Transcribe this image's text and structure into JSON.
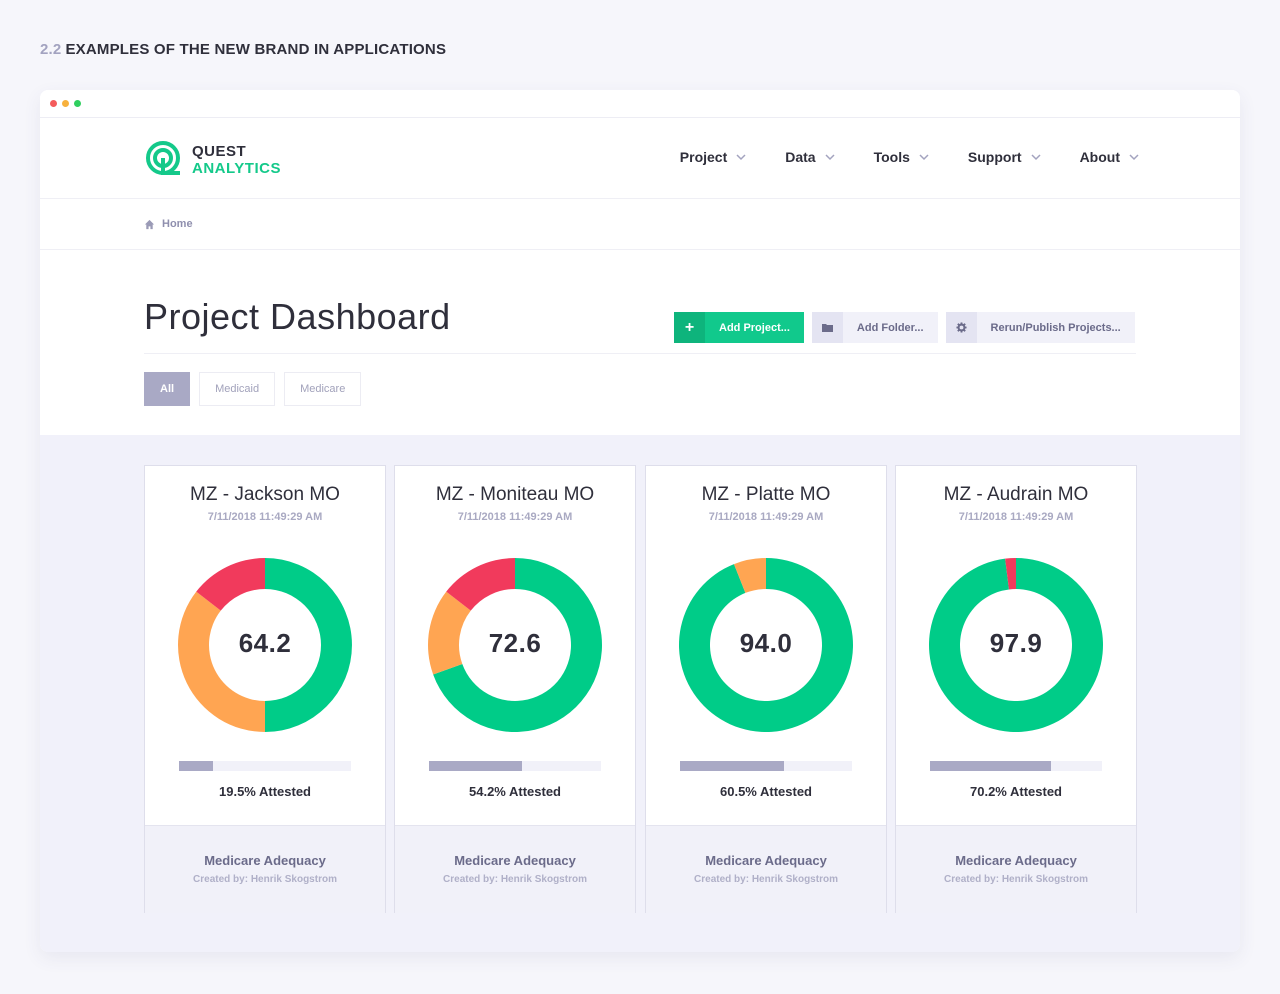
{
  "section": {
    "number": "2.2",
    "title": "EXAMPLES OF THE NEW BRAND IN APPLICATIONS"
  },
  "brand": {
    "line1": "QUEST",
    "line2": "ANALYTICS",
    "color": "#14c98a"
  },
  "nav": [
    {
      "label": "Project",
      "icon": "chevron-down-icon"
    },
    {
      "label": "Data",
      "icon": "chevron-down-icon"
    },
    {
      "label": "Tools",
      "icon": "chevron-down-icon"
    },
    {
      "label": "Support",
      "icon": "chevron-down-icon"
    },
    {
      "label": "About",
      "icon": "chevron-down-icon"
    }
  ],
  "breadcrumb": {
    "home": "Home",
    "icon": "home-icon"
  },
  "page": {
    "title": "Project Dashboard"
  },
  "actions": {
    "add_project": {
      "label": "Add Project...",
      "icon": "plus-icon"
    },
    "add_folder": {
      "label": "Add Folder...",
      "icon": "folder-icon"
    },
    "rerun": {
      "label": "Rerun/Publish Projects...",
      "icon": "gear-icon"
    }
  },
  "filters": [
    {
      "label": "All",
      "active": true
    },
    {
      "label": "Medicaid",
      "active": false
    },
    {
      "label": "Medicare",
      "active": false
    }
  ],
  "colors": {
    "green": "#00cc88",
    "orange": "#ffa552",
    "red": "#f13a5c",
    "bar": "#a9a9c5"
  },
  "cards": [
    {
      "name": "MZ - Jackson MO",
      "date": "7/11/2018 11:49:29 AM",
      "score": "64.2",
      "segments": {
        "green": 50,
        "orange": 35.5,
        "red": 14.5
      },
      "attested_fraction": 0.195,
      "attested": "19.5% Attested",
      "type": "Medicare Adequacy",
      "created_by": "Created by: Henrik Skogstrom"
    },
    {
      "name": "MZ - Moniteau MO",
      "date": "7/11/2018 11:49:29 AM",
      "score": "72.6",
      "segments": {
        "green": 69.5,
        "orange": 16,
        "red": 14.5
      },
      "attested_fraction": 0.542,
      "attested": "54.2% Attested",
      "type": "Medicare Adequacy",
      "created_by": "Created by: Henrik Skogstrom"
    },
    {
      "name": "MZ - Platte MO",
      "date": "7/11/2018 11:49:29 AM",
      "score": "94.0",
      "segments": {
        "green": 94,
        "orange": 6,
        "red": 0
      },
      "attested_fraction": 0.605,
      "attested": "60.5% Attested",
      "type": "Medicare Adequacy",
      "created_by": "Created by: Henrik Skogstrom"
    },
    {
      "name": "MZ - Audrain MO",
      "date": "7/11/2018 11:49:29 AM",
      "score": "97.9",
      "segments": {
        "green": 98,
        "orange": 0,
        "red": 2
      },
      "attested_fraction": 0.702,
      "attested": "70.2% Attested",
      "type": "Medicare Adequacy",
      "created_by": "Created by: Henrik Skogstrom"
    }
  ]
}
